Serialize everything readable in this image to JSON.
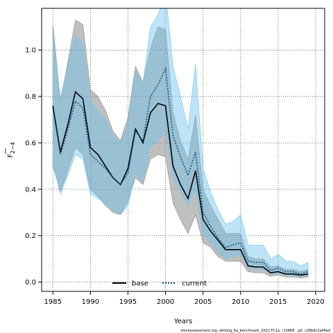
{
  "chart_data": {
    "type": "line",
    "xlabel": "Years",
    "ylabel_main": "F",
    "ylabel_sub": "2−4",
    "xlim": [
      1983.5,
      2021.2
    ],
    "ylim": [
      -0.04,
      1.18
    ],
    "x_ticks": [
      1985,
      1990,
      1995,
      2000,
      2005,
      2010,
      2015,
      2020
    ],
    "y_ticks": [
      0.0,
      0.2,
      0.4,
      0.6,
      0.8,
      1.0
    ],
    "grid": true,
    "legend_position": "bottom-center",
    "x": [
      1985,
      1986,
      1987,
      1988,
      1989,
      1990,
      1991,
      1992,
      1993,
      1994,
      1995,
      1996,
      1997,
      1998,
      1999,
      2000,
      2001,
      2002,
      2003,
      2004,
      2005,
      2006,
      2007,
      2008,
      2009,
      2010,
      2011,
      2012,
      2013,
      2014,
      2015,
      2016,
      2017,
      2018,
      2019
    ],
    "series": [
      {
        "name": "base",
        "color": "#000000",
        "band_color": "#8a8a8a",
        "line_style": "solid",
        "values": [
          0.76,
          0.56,
          0.68,
          0.82,
          0.79,
          0.58,
          0.55,
          0.5,
          0.45,
          0.42,
          0.49,
          0.66,
          0.6,
          0.73,
          0.77,
          0.76,
          0.5,
          0.42,
          0.36,
          0.48,
          0.27,
          0.22,
          0.18,
          0.14,
          0.14,
          0.14,
          0.07,
          0.065,
          0.065,
          0.04,
          0.045,
          0.035,
          0.035,
          0.03,
          0.035
        ],
        "lower": [
          0.5,
          0.39,
          0.48,
          0.58,
          0.55,
          0.4,
          0.37,
          0.33,
          0.3,
          0.29,
          0.35,
          0.45,
          0.42,
          0.53,
          0.55,
          0.54,
          0.34,
          0.27,
          0.21,
          0.29,
          0.17,
          0.15,
          0.11,
          0.09,
          0.09,
          0.09,
          0.045,
          0.04,
          0.04,
          0.025,
          0.03,
          0.022,
          0.022,
          0.018,
          0.022
        ],
        "upper": [
          1.11,
          0.78,
          0.95,
          1.13,
          1.11,
          0.83,
          0.8,
          0.74,
          0.65,
          0.61,
          0.71,
          0.93,
          0.86,
          1.01,
          1.1,
          1.09,
          0.73,
          0.61,
          0.53,
          0.72,
          0.4,
          0.33,
          0.27,
          0.21,
          0.21,
          0.21,
          0.11,
          0.1,
          0.1,
          0.065,
          0.07,
          0.055,
          0.055,
          0.045,
          0.055
        ]
      },
      {
        "name": "current",
        "color": "#0b4f7a",
        "band_color": "#6cc3ec",
        "line_style": "dotted",
        "values": [
          0.75,
          0.55,
          0.66,
          0.78,
          0.75,
          0.55,
          0.52,
          0.49,
          0.45,
          0.42,
          0.47,
          0.65,
          0.61,
          0.8,
          0.85,
          0.92,
          0.63,
          0.54,
          0.46,
          0.56,
          0.3,
          0.24,
          0.19,
          0.15,
          0.16,
          0.17,
          0.09,
          0.085,
          0.085,
          0.05,
          0.06,
          0.045,
          0.045,
          0.035,
          0.045
        ],
        "lower": [
          0.51,
          0.38,
          0.46,
          0.55,
          0.53,
          0.38,
          0.36,
          0.34,
          0.31,
          0.29,
          0.33,
          0.47,
          0.43,
          0.58,
          0.61,
          0.66,
          0.45,
          0.39,
          0.33,
          0.4,
          0.21,
          0.17,
          0.13,
          0.1,
          0.11,
          0.12,
          0.06,
          0.055,
          0.055,
          0.035,
          0.04,
          0.03,
          0.03,
          0.024,
          0.03
        ],
        "upper": [
          1.08,
          0.79,
          0.94,
          1.06,
          1.03,
          0.78,
          0.74,
          0.7,
          0.63,
          0.6,
          0.68,
          0.91,
          0.86,
          1.1,
          1.15,
          1.25,
          0.93,
          0.8,
          0.66,
          0.94,
          0.49,
          0.39,
          0.31,
          0.25,
          0.26,
          0.29,
          0.16,
          0.16,
          0.16,
          0.1,
          0.12,
          0.09,
          0.09,
          0.07,
          0.085
        ]
      }
    ]
  },
  "footer_text": "stockassessment.org, whiting_6a_benchmark_2021 FC1a, r13868 , git: c28bdc2a44ad"
}
